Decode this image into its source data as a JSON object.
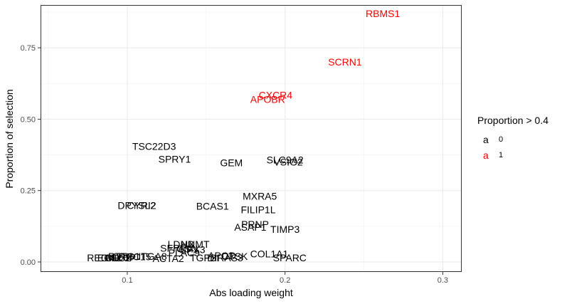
{
  "chart_data": {
    "type": "scatter",
    "xlabel": "Abs loading weight",
    "ylabel": "Proportion of selection",
    "xlim": [
      0.045,
      0.312
    ],
    "ylim": [
      -0.035,
      0.9
    ],
    "x_ticks": [
      0.1,
      0.2,
      0.3
    ],
    "x_tick_labels": [
      "0.1",
      "0.2",
      "0.3"
    ],
    "y_ticks": [
      0.0,
      0.25,
      0.5,
      0.75
    ],
    "y_tick_labels": [
      "0.00",
      "0.25",
      "0.50",
      "0.75"
    ],
    "grid": true,
    "legend": {
      "title": "Proportion > 0.4",
      "position": "right",
      "entries": [
        {
          "key": "a",
          "label": "0",
          "color": "#000000"
        },
        {
          "key": "a",
          "label": "1",
          "color": "#ff0000"
        }
      ]
    },
    "colors": {
      "0": "#000000",
      "1": "#ff0000"
    },
    "points": [
      {
        "label": "RBMS1",
        "x": 0.262,
        "y": 0.87,
        "group": 1
      },
      {
        "label": "SCRN1",
        "x": 0.238,
        "y": 0.7,
        "group": 1
      },
      {
        "label": "CXCR4",
        "x": 0.194,
        "y": 0.585,
        "group": 1
      },
      {
        "label": "APOBR",
        "x": 0.189,
        "y": 0.57,
        "group": 1
      },
      {
        "label": "TSC22D3",
        "x": 0.117,
        "y": 0.405,
        "group": 0
      },
      {
        "label": "SPRY1",
        "x": 0.13,
        "y": 0.36,
        "group": 0
      },
      {
        "label": "GEM",
        "x": 0.166,
        "y": 0.348,
        "group": 0
      },
      {
        "label": "SLC9A2",
        "x": 0.2,
        "y": 0.358,
        "group": 0
      },
      {
        "label": "VSIG2",
        "x": 0.202,
        "y": 0.35,
        "group": 0
      },
      {
        "label": "MXRA5",
        "x": 0.184,
        "y": 0.23,
        "group": 0
      },
      {
        "label": "DPYSL2",
        "x": 0.106,
        "y": 0.198,
        "group": 0
      },
      {
        "label": "CYRI2",
        "x": 0.109,
        "y": 0.198,
        "group": 0
      },
      {
        "label": "BCAS1",
        "x": 0.154,
        "y": 0.196,
        "group": 0
      },
      {
        "label": "FILIP1L",
        "x": 0.183,
        "y": 0.183,
        "group": 0
      },
      {
        "label": "PRNP",
        "x": 0.181,
        "y": 0.132,
        "group": 0
      },
      {
        "label": "ASAP1",
        "x": 0.178,
        "y": 0.122,
        "group": 0
      },
      {
        "label": "TIMP3",
        "x": 0.2,
        "y": 0.115,
        "group": 0
      },
      {
        "label": "LDHB",
        "x": 0.134,
        "y": 0.062,
        "group": 0
      },
      {
        "label": "NNMT",
        "x": 0.143,
        "y": 0.062,
        "group": 0
      },
      {
        "label": "SFRP4",
        "x": 0.131,
        "y": 0.048,
        "group": 0
      },
      {
        "label": "GSN",
        "x": 0.138,
        "y": 0.046,
        "group": 0
      },
      {
        "label": "GPX3",
        "x": 0.141,
        "y": 0.044,
        "group": 0
      },
      {
        "label": "PLAC9",
        "x": 0.136,
        "y": 0.032,
        "group": 0
      },
      {
        "label": "PTTG1",
        "x": 0.098,
        "y": 0.02,
        "group": 0
      },
      {
        "label": "LRRC15",
        "x": 0.103,
        "y": 0.018,
        "group": 0
      },
      {
        "label": "ITGA8",
        "x": 0.116,
        "y": 0.02,
        "group": 0
      },
      {
        "label": "APOD",
        "x": 0.16,
        "y": 0.022,
        "group": 0
      },
      {
        "label": "COL1A1",
        "x": 0.19,
        "y": 0.028,
        "group": 0
      },
      {
        "label": "REG4",
        "x": 0.083,
        "y": 0.015,
        "group": 0
      },
      {
        "label": "EGFL6",
        "x": 0.091,
        "y": 0.015,
        "group": 0
      },
      {
        "label": "CD52",
        "x": 0.094,
        "y": 0.015,
        "group": 0
      },
      {
        "label": "MLXIP",
        "x": 0.096,
        "y": 0.015,
        "group": 0
      },
      {
        "label": "ACTA2",
        "x": 0.126,
        "y": 0.012,
        "group": 0
      },
      {
        "label": "TGFBI",
        "x": 0.149,
        "y": 0.015,
        "group": 0
      },
      {
        "label": "DIRAS3",
        "x": 0.162,
        "y": 0.015,
        "group": 0
      },
      {
        "label": "CTSK",
        "x": 0.168,
        "y": 0.02,
        "group": 0
      },
      {
        "label": "SPARC",
        "x": 0.203,
        "y": 0.015,
        "group": 0
      }
    ]
  }
}
